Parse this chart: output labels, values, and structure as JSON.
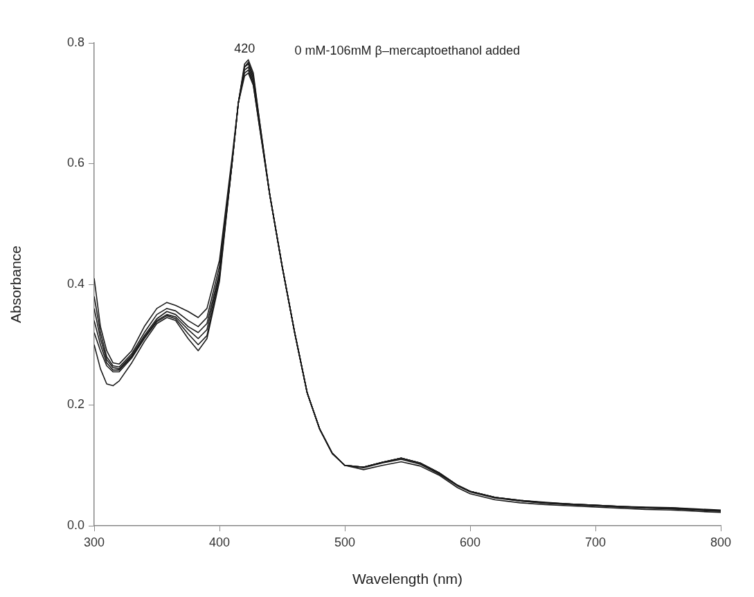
{
  "chart_data": {
    "type": "line",
    "xlabel": "Wavelength (nm)",
    "ylabel": "Absorbance",
    "xlim": [
      300,
      800
    ],
    "xticks": [
      300,
      400,
      500,
      600,
      700,
      800
    ],
    "ylim": [
      0,
      0.8
    ],
    "yticks": [
      {
        "value": 0,
        "label": "0.0"
      },
      0.2,
      0.4,
      0.6,
      0.8
    ],
    "annotations": [
      {
        "text": "420",
        "x": 420,
        "y": 0.772
      },
      "0 mM-106mM β–mercaptoethanol added"
    ],
    "x": [
      300,
      305,
      310,
      315,
      320,
      330,
      340,
      350,
      358,
      365,
      375,
      383,
      390,
      400,
      410,
      415,
      420,
      423,
      427,
      432,
      440,
      450,
      460,
      470,
      480,
      490,
      500,
      515,
      530,
      545,
      560,
      575,
      590,
      600,
      620,
      640,
      660,
      680,
      700,
      720,
      740,
      760,
      780,
      800
    ],
    "series": [
      {
        "color": "#1a1a1a",
        "values": [
          0.41,
          0.33,
          0.29,
          0.27,
          0.268,
          0.29,
          0.33,
          0.36,
          0.37,
          0.365,
          0.355,
          0.345,
          0.36,
          0.44,
          0.61,
          0.7,
          0.745,
          0.75,
          0.73,
          0.66,
          0.55,
          0.43,
          0.32,
          0.22,
          0.16,
          0.12,
          0.1,
          0.096,
          0.104,
          0.11,
          0.102,
          0.086,
          0.066,
          0.056,
          0.046,
          0.041,
          0.037,
          0.035,
          0.033,
          0.031,
          0.03,
          0.028,
          0.026,
          0.024
        ]
      },
      {
        "color": "#1a1a1a",
        "values": [
          0.38,
          0.32,
          0.28,
          0.265,
          0.263,
          0.285,
          0.32,
          0.35,
          0.36,
          0.356,
          0.34,
          0.33,
          0.345,
          0.43,
          0.6,
          0.7,
          0.75,
          0.755,
          0.73,
          0.66,
          0.55,
          0.43,
          0.32,
          0.22,
          0.16,
          0.12,
          0.1,
          0.097,
          0.105,
          0.112,
          0.104,
          0.088,
          0.067,
          0.057,
          0.047,
          0.041,
          0.038,
          0.036,
          0.034,
          0.032,
          0.03,
          0.029,
          0.027,
          0.025
        ]
      },
      {
        "color": "#1a1a1a",
        "values": [
          0.36,
          0.31,
          0.275,
          0.262,
          0.26,
          0.282,
          0.315,
          0.343,
          0.355,
          0.35,
          0.33,
          0.32,
          0.335,
          0.42,
          0.6,
          0.7,
          0.755,
          0.76,
          0.735,
          0.665,
          0.55,
          0.43,
          0.32,
          0.22,
          0.16,
          0.12,
          0.1,
          0.097,
          0.105,
          0.112,
          0.104,
          0.088,
          0.067,
          0.057,
          0.047,
          0.042,
          0.038,
          0.035,
          0.033,
          0.031,
          0.029,
          0.028,
          0.026,
          0.024
        ]
      },
      {
        "color": "#1a1a1a",
        "values": [
          0.34,
          0.3,
          0.27,
          0.258,
          0.258,
          0.28,
          0.312,
          0.34,
          0.35,
          0.346,
          0.325,
          0.31,
          0.325,
          0.415,
          0.6,
          0.7,
          0.76,
          0.765,
          0.74,
          0.665,
          0.55,
          0.43,
          0.32,
          0.22,
          0.16,
          0.12,
          0.1,
          0.097,
          0.105,
          0.112,
          0.104,
          0.088,
          0.067,
          0.057,
          0.047,
          0.042,
          0.038,
          0.036,
          0.034,
          0.032,
          0.03,
          0.03,
          0.027,
          0.025
        ]
      },
      {
        "color": "#1a1a1a",
        "values": [
          0.32,
          0.29,
          0.265,
          0.255,
          0.255,
          0.278,
          0.31,
          0.338,
          0.348,
          0.343,
          0.318,
          0.3,
          0.315,
          0.41,
          0.6,
          0.7,
          0.76,
          0.768,
          0.745,
          0.67,
          0.55,
          0.43,
          0.32,
          0.22,
          0.16,
          0.12,
          0.1,
          0.097,
          0.105,
          0.112,
          0.104,
          0.088,
          0.067,
          0.057,
          0.047,
          0.042,
          0.039,
          0.036,
          0.034,
          0.032,
          0.031,
          0.03,
          0.028,
          0.026
        ]
      },
      {
        "color": "#1a1a1a",
        "values": [
          0.3,
          0.26,
          0.235,
          0.232,
          0.24,
          0.27,
          0.305,
          0.335,
          0.345,
          0.34,
          0.31,
          0.29,
          0.31,
          0.405,
          0.6,
          0.7,
          0.765,
          0.772,
          0.75,
          0.67,
          0.55,
          0.43,
          0.32,
          0.22,
          0.16,
          0.12,
          0.1,
          0.093,
          0.1,
          0.106,
          0.099,
          0.084,
          0.063,
          0.053,
          0.043,
          0.038,
          0.035,
          0.033,
          0.031,
          0.029,
          0.027,
          0.026,
          0.024,
          0.022
        ]
      }
    ]
  }
}
